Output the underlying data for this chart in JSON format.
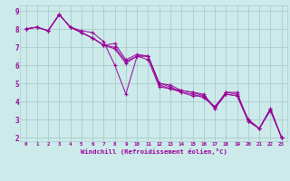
{
  "xlabel": "Windchill (Refroidissement éolien,°C)",
  "background_color": "#cceaea",
  "grid_color": "#aacccc",
  "line_color": "#990099",
  "xlim": [
    -0.5,
    23.5
  ],
  "ylim": [
    1.8,
    9.3
  ],
  "yticks": [
    2,
    3,
    4,
    5,
    6,
    7,
    8,
    9
  ],
  "xticks": [
    0,
    1,
    2,
    3,
    4,
    5,
    6,
    7,
    8,
    9,
    10,
    11,
    12,
    13,
    14,
    15,
    16,
    17,
    18,
    19,
    20,
    21,
    22,
    23
  ],
  "series": [
    [
      8.0,
      8.1,
      7.9,
      8.8,
      8.1,
      7.9,
      7.8,
      7.3,
      6.0,
      4.4,
      6.5,
      6.3,
      4.8,
      4.7,
      4.6,
      4.5,
      4.4,
      3.6,
      4.5,
      4.5,
      2.9,
      2.5,
      3.6,
      2.0
    ],
    [
      8.0,
      8.1,
      7.9,
      8.8,
      8.1,
      7.8,
      7.5,
      7.1,
      7.2,
      6.3,
      6.6,
      6.5,
      5.0,
      4.8,
      4.5,
      4.4,
      4.2,
      3.7,
      4.4,
      4.3,
      2.9,
      2.5,
      3.6,
      2.0
    ],
    [
      8.0,
      8.1,
      7.9,
      8.8,
      8.1,
      7.8,
      7.5,
      7.1,
      7.0,
      6.2,
      6.5,
      6.5,
      5.0,
      4.9,
      4.6,
      4.5,
      4.3,
      3.7,
      4.5,
      4.4,
      3.0,
      2.5,
      3.5,
      2.0
    ],
    [
      8.0,
      8.1,
      7.9,
      8.8,
      8.1,
      7.8,
      7.5,
      7.1,
      6.9,
      6.1,
      6.5,
      6.5,
      4.9,
      4.7,
      4.5,
      4.3,
      4.3,
      3.6,
      4.4,
      4.3,
      3.0,
      2.5,
      3.5,
      2.0
    ]
  ]
}
